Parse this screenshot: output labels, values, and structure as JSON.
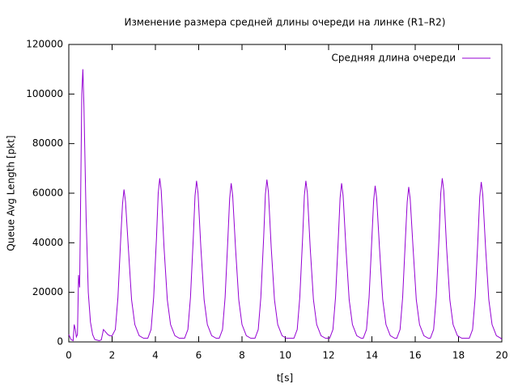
{
  "chart_data": {
    "type": "line",
    "title": "Изменение размера средней длины очереди на линке (R1–R2)",
    "x_label": "t[s]",
    "y_label": "Queue Avg Length [pkt]",
    "xlim": [
      0,
      20
    ],
    "xticks": [
      0,
      2,
      4,
      6,
      8,
      10,
      12,
      14,
      16,
      18,
      20
    ],
    "ylim": [
      0,
      120000
    ],
    "yticks": [
      0,
      20000,
      40000,
      60000,
      80000,
      100000,
      120000
    ],
    "legend": "upper right",
    "series": [
      {
        "name": "Средняя длина очереди",
        "color": "#9400d3",
        "x": [
          0,
          0.1,
          0.2,
          0.25,
          0.3,
          0.35,
          0.4,
          0.45,
          0.5,
          0.55,
          0.6,
          0.65,
          0.7,
          0.8,
          0.9,
          1.0,
          1.1,
          1.2,
          1.4,
          1.5,
          1.6,
          1.7,
          1.8,
          1.9,
          2.0,
          2.15,
          2.27,
          2.4,
          2.48,
          2.55,
          2.62,
          2.75,
          2.9,
          3.05,
          3.25,
          3.45,
          3.65,
          3.8,
          3.92,
          4.05,
          4.13,
          4.2,
          4.27,
          4.4,
          4.55,
          4.7,
          4.9,
          5.1,
          5.35,
          5.5,
          5.62,
          5.75,
          5.83,
          5.9,
          5.97,
          6.1,
          6.25,
          6.4,
          6.6,
          6.8,
          6.95,
          7.1,
          7.22,
          7.35,
          7.43,
          7.5,
          7.57,
          7.7,
          7.85,
          8.0,
          8.2,
          8.4,
          8.6,
          8.75,
          8.87,
          9.0,
          9.08,
          9.15,
          9.22,
          9.35,
          9.5,
          9.65,
          9.85,
          10.05,
          10.4,
          10.55,
          10.67,
          10.8,
          10.88,
          10.95,
          11.02,
          11.15,
          11.3,
          11.45,
          11.65,
          11.85,
          12.05,
          12.2,
          12.32,
          12.45,
          12.53,
          12.6,
          12.67,
          12.8,
          12.95,
          13.1,
          13.3,
          13.5,
          13.6,
          13.75,
          13.87,
          14.0,
          14.08,
          14.15,
          14.22,
          14.35,
          14.5,
          14.65,
          14.85,
          15.05,
          15.15,
          15.3,
          15.42,
          15.55,
          15.63,
          15.7,
          15.77,
          15.9,
          16.05,
          16.2,
          16.4,
          16.6,
          16.7,
          16.85,
          16.97,
          17.1,
          17.18,
          17.25,
          17.32,
          17.45,
          17.6,
          17.75,
          17.95,
          18.15,
          18.5,
          18.65,
          18.77,
          18.9,
          18.98,
          19.05,
          19.12,
          19.25,
          19.4,
          19.55,
          19.75,
          19.95,
          20
        ],
        "values": [
          3000,
          1000,
          500,
          7000,
          5000,
          2000,
          3000,
          27000,
          22000,
          60000,
          100000,
          110000,
          95000,
          50000,
          20000,
          8000,
          3000,
          1000,
          500,
          800,
          5000,
          4000,
          3000,
          2500,
          2500,
          5000,
          18000,
          42000,
          55500,
          61500,
          56500,
          38000,
          17000,
          7000,
          2500,
          1500,
          1500,
          5000,
          18000,
          42000,
          60000,
          66000,
          61000,
          38000,
          17000,
          7000,
          2500,
          1500,
          1500,
          5000,
          18000,
          42000,
          59000,
          65000,
          60000,
          38000,
          17000,
          7000,
          2500,
          1500,
          1500,
          5000,
          18000,
          42000,
          58000,
          64000,
          59000,
          38000,
          17000,
          7000,
          2500,
          1500,
          1500,
          5000,
          18000,
          42000,
          59500,
          65500,
          60500,
          38000,
          17000,
          7000,
          2500,
          1500,
          1500,
          5000,
          18000,
          42000,
          59000,
          65000,
          60000,
          38000,
          17000,
          7000,
          2500,
          1500,
          1500,
          5000,
          18000,
          42000,
          58000,
          64000,
          59000,
          38000,
          17000,
          7000,
          2500,
          1500,
          1500,
          5000,
          18000,
          42000,
          57000,
          63000,
          58000,
          38000,
          17000,
          7000,
          2500,
          1500,
          1500,
          5000,
          18000,
          42000,
          56500,
          62500,
          57500,
          38000,
          17000,
          7000,
          2500,
          1500,
          1500,
          5000,
          18000,
          42000,
          60000,
          66000,
          61000,
          38000,
          17000,
          7000,
          2500,
          1500,
          1500,
          5000,
          18000,
          42000,
          58500,
          64500,
          59500,
          38000,
          17000,
          7000,
          2500,
          1500,
          1000
        ]
      }
    ]
  }
}
